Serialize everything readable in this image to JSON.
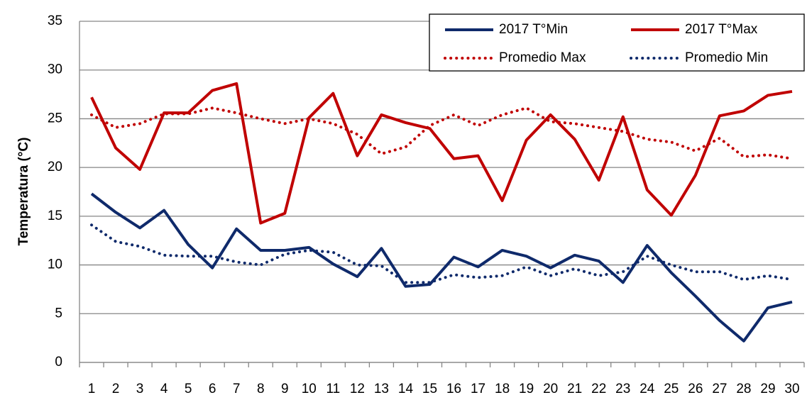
{
  "chart_data": {
    "type": "line",
    "y_label": "Temperatura (°C)",
    "categories": [
      "1",
      "2",
      "3",
      "4",
      "5",
      "6",
      "7",
      "8",
      "9",
      "10",
      "11",
      "12",
      "13",
      "14",
      "15",
      "16",
      "17",
      "18",
      "19",
      "20",
      "21",
      "22",
      "23",
      "24",
      "25",
      "26",
      "27",
      "28",
      "29",
      "30"
    ],
    "series": [
      {
        "name": "2017 T°Min",
        "color": "#0f2a6b",
        "dash": "solid",
        "values": [
          17.3,
          15.4,
          13.8,
          15.6,
          12.1,
          9.7,
          13.7,
          11.5,
          11.5,
          11.8,
          10.1,
          8.8,
          11.7,
          7.8,
          8.0,
          10.8,
          9.8,
          11.5,
          10.9,
          9.7,
          11.0,
          10.4,
          8.2,
          12.0,
          9.2,
          6.8,
          4.3,
          2.2,
          5.6,
          6.2
        ]
      },
      {
        "name": "2017 T°Max",
        "color": "#c00000",
        "dash": "solid",
        "values": [
          27.2,
          22.0,
          19.8,
          25.6,
          25.6,
          27.9,
          28.6,
          14.3,
          15.3,
          25.1,
          27.6,
          21.2,
          25.4,
          24.6,
          24.0,
          20.9,
          21.2,
          16.6,
          22.8,
          25.4,
          22.9,
          18.7,
          25.2,
          17.7,
          15.1,
          19.2,
          25.3,
          25.8,
          27.4,
          27.8
        ]
      },
      {
        "name": "Promedio Max",
        "color": "#c00000",
        "dash": "dotted",
        "values": [
          25.4,
          24.1,
          24.5,
          25.5,
          25.5,
          26.1,
          25.6,
          25.0,
          24.5,
          25.0,
          24.5,
          23.4,
          21.4,
          22.1,
          24.3,
          25.4,
          24.3,
          25.4,
          26.1,
          24.7,
          24.5,
          24.1,
          23.7,
          22.9,
          22.6,
          21.7,
          23.0,
          21.1,
          21.3,
          20.9
        ]
      },
      {
        "name": "Promedio Min",
        "color": "#0f2a6b",
        "dash": "dotted",
        "values": [
          14.1,
          12.4,
          11.9,
          11.0,
          10.9,
          10.9,
          10.3,
          10.0,
          11.1,
          11.5,
          11.3,
          10.0,
          9.9,
          8.2,
          8.2,
          9.0,
          8.7,
          8.9,
          9.8,
          8.9,
          9.6,
          8.9,
          9.3,
          10.9,
          10.0,
          9.3,
          9.3,
          8.5,
          8.9,
          8.5
        ]
      }
    ],
    "ylim": [
      0,
      35
    ],
    "yticks": [
      0,
      5,
      10,
      15,
      20,
      25,
      30,
      35
    ],
    "grid": true,
    "legend": "top-right"
  }
}
